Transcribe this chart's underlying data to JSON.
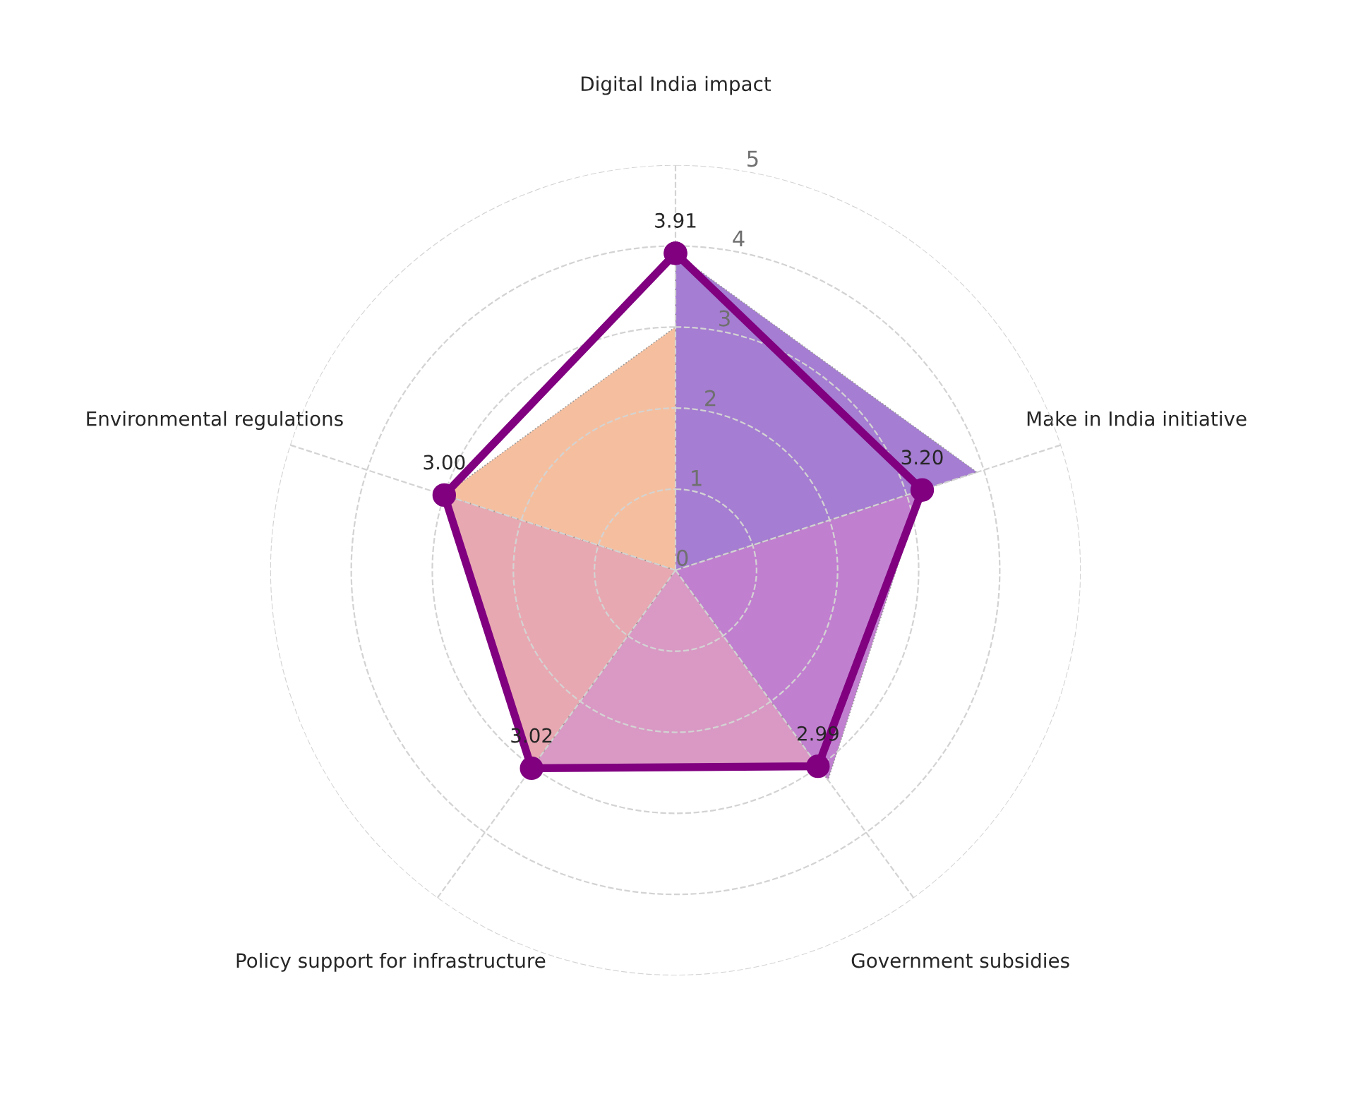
{
  "chart_data": {
    "type": "radar",
    "categories": [
      "Digital India impact",
      "Make in India initiative",
      "Government subsidies",
      "Policy support for infrastructure",
      "Environmental regulations"
    ],
    "series": [
      {
        "type": "area",
        "color": "#a57dd2",
        "values": [
          3.91,
          3.91,
          0,
          0,
          0
        ]
      },
      {
        "type": "area",
        "color": "#c17fd0",
        "values": [
          0,
          3.2,
          3.2,
          0,
          0
        ]
      },
      {
        "type": "area",
        "color": "#d999c4",
        "values": [
          0,
          0,
          2.99,
          2.99,
          0
        ]
      },
      {
        "type": "area",
        "color": "#e8a8b1",
        "values": [
          0,
          0,
          0,
          3.02,
          3.02
        ]
      },
      {
        "type": "area",
        "color": "#f5bf9f",
        "values": [
          3.0,
          0,
          0,
          0,
          3.0
        ]
      },
      {
        "color": "#800080",
        "marker": "circle",
        "values": [
          3.91,
          3.2,
          2.99,
          3.02,
          3.0
        ],
        "value_labels": [
          "3.91",
          "3.20",
          "2.99",
          "3.02",
          "3.00"
        ]
      }
    ],
    "ylim": [
      0,
      5
    ],
    "yticks": [
      0,
      1,
      2,
      3,
      4,
      5
    ],
    "grid": true,
    "line_style": "solid"
  }
}
